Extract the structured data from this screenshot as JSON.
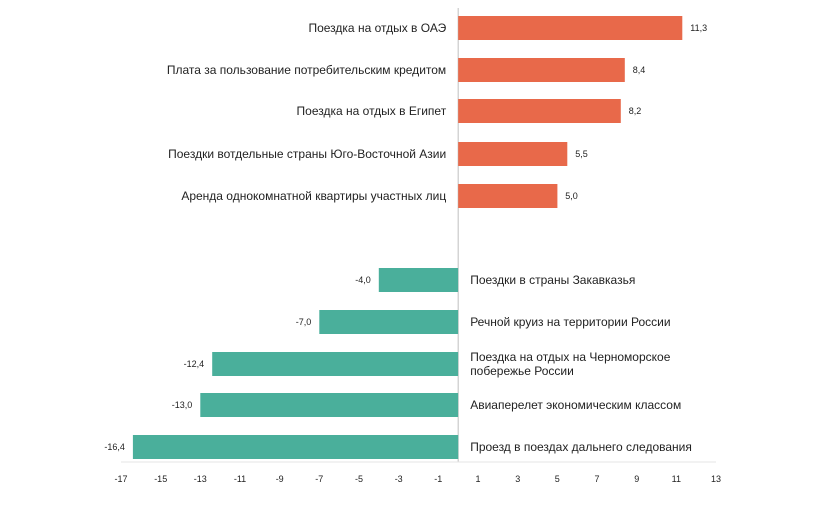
{
  "chart_data": {
    "type": "bar",
    "orientation": "horizontal",
    "title": "",
    "xlabel": "",
    "ylabel": "",
    "xlim": [
      -17,
      13
    ],
    "xticks": [
      -17,
      -15,
      -13,
      -11,
      -9,
      -7,
      -5,
      -3,
      -1,
      1,
      3,
      5,
      7,
      9,
      11,
      13
    ],
    "grid": false,
    "colors": {
      "positive": "#e8694a",
      "negative": "#4aaf9b",
      "axis": "#bfbfbf"
    },
    "bars": [
      {
        "label": "Поездка на отдых в ОАЭ",
        "value": 11.3,
        "value_label": "11,3"
      },
      {
        "label": "Плата за пользование потребительским кредитом",
        "value": 8.4,
        "value_label": "8,4"
      },
      {
        "label": "Поездка на отдых в Египет",
        "value": 8.2,
        "value_label": "8,2"
      },
      {
        "label": "Поездки вотдельные страны Юго-Восточной Азии",
        "value": 5.5,
        "value_label": "5,5"
      },
      {
        "label": "Аренда однокомнатной квартиры участных лиц",
        "value": 5.0,
        "value_label": "5,0"
      },
      {
        "label": "Поездки в страны Закавказья",
        "value": -4.0,
        "value_label": "-4,0"
      },
      {
        "label": "Речной круиз на территории России",
        "value": -7.0,
        "value_label": "-7,0"
      },
      {
        "label": "Поездка на отдых на Черноморское побережье России",
        "value": -12.4,
        "value_label": "-12,4",
        "label_lines": [
          "Поездка на отдых на Черноморское",
          "побережье России"
        ]
      },
      {
        "label": "Авиаперелет экономическим классом",
        "value": -13.0,
        "value_label": "-13,0"
      },
      {
        "label": "Проезд в поездах дальнего следования",
        "value": -16.4,
        "value_label": "-16,4"
      }
    ]
  }
}
